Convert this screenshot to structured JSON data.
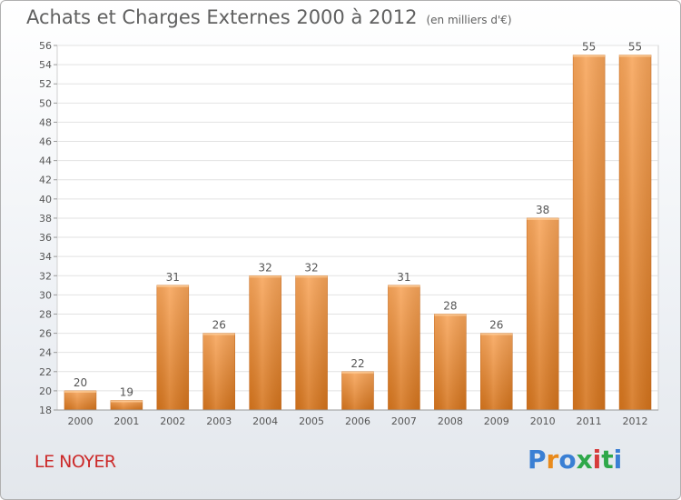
{
  "header": {
    "title": "Achats et Charges Externes 2000 à 2012",
    "subtitle": "(en milliers d'€)"
  },
  "footer": {
    "place": "LE NOYER",
    "logo_letters": [
      "P",
      "r",
      "o",
      "x",
      "i",
      "t",
      "i"
    ],
    "logo_colors": [
      "#3a7fd4",
      "#e98a1c",
      "#3a7fd4",
      "#2fa84a",
      "#d63b3b",
      "#2fa84a",
      "#3a7fd4"
    ]
  },
  "chart_data": {
    "type": "bar",
    "title": "Achats et Charges Externes 2000 à 2012",
    "subtitle": "(en milliers d'€)",
    "categories": [
      "2000",
      "2001",
      "2002",
      "2003",
      "2004",
      "2005",
      "2006",
      "2007",
      "2008",
      "2009",
      "2010",
      "2011",
      "2012"
    ],
    "values": [
      20,
      19,
      31,
      26,
      32,
      32,
      22,
      31,
      28,
      26,
      38,
      55,
      55
    ],
    "ylim": [
      18,
      56
    ],
    "yticks": [
      18,
      20,
      22,
      24,
      26,
      28,
      30,
      32,
      34,
      36,
      38,
      40,
      42,
      44,
      46,
      48,
      50,
      52,
      54,
      56
    ],
    "grid": true,
    "bar_color": "#f0923a"
  }
}
